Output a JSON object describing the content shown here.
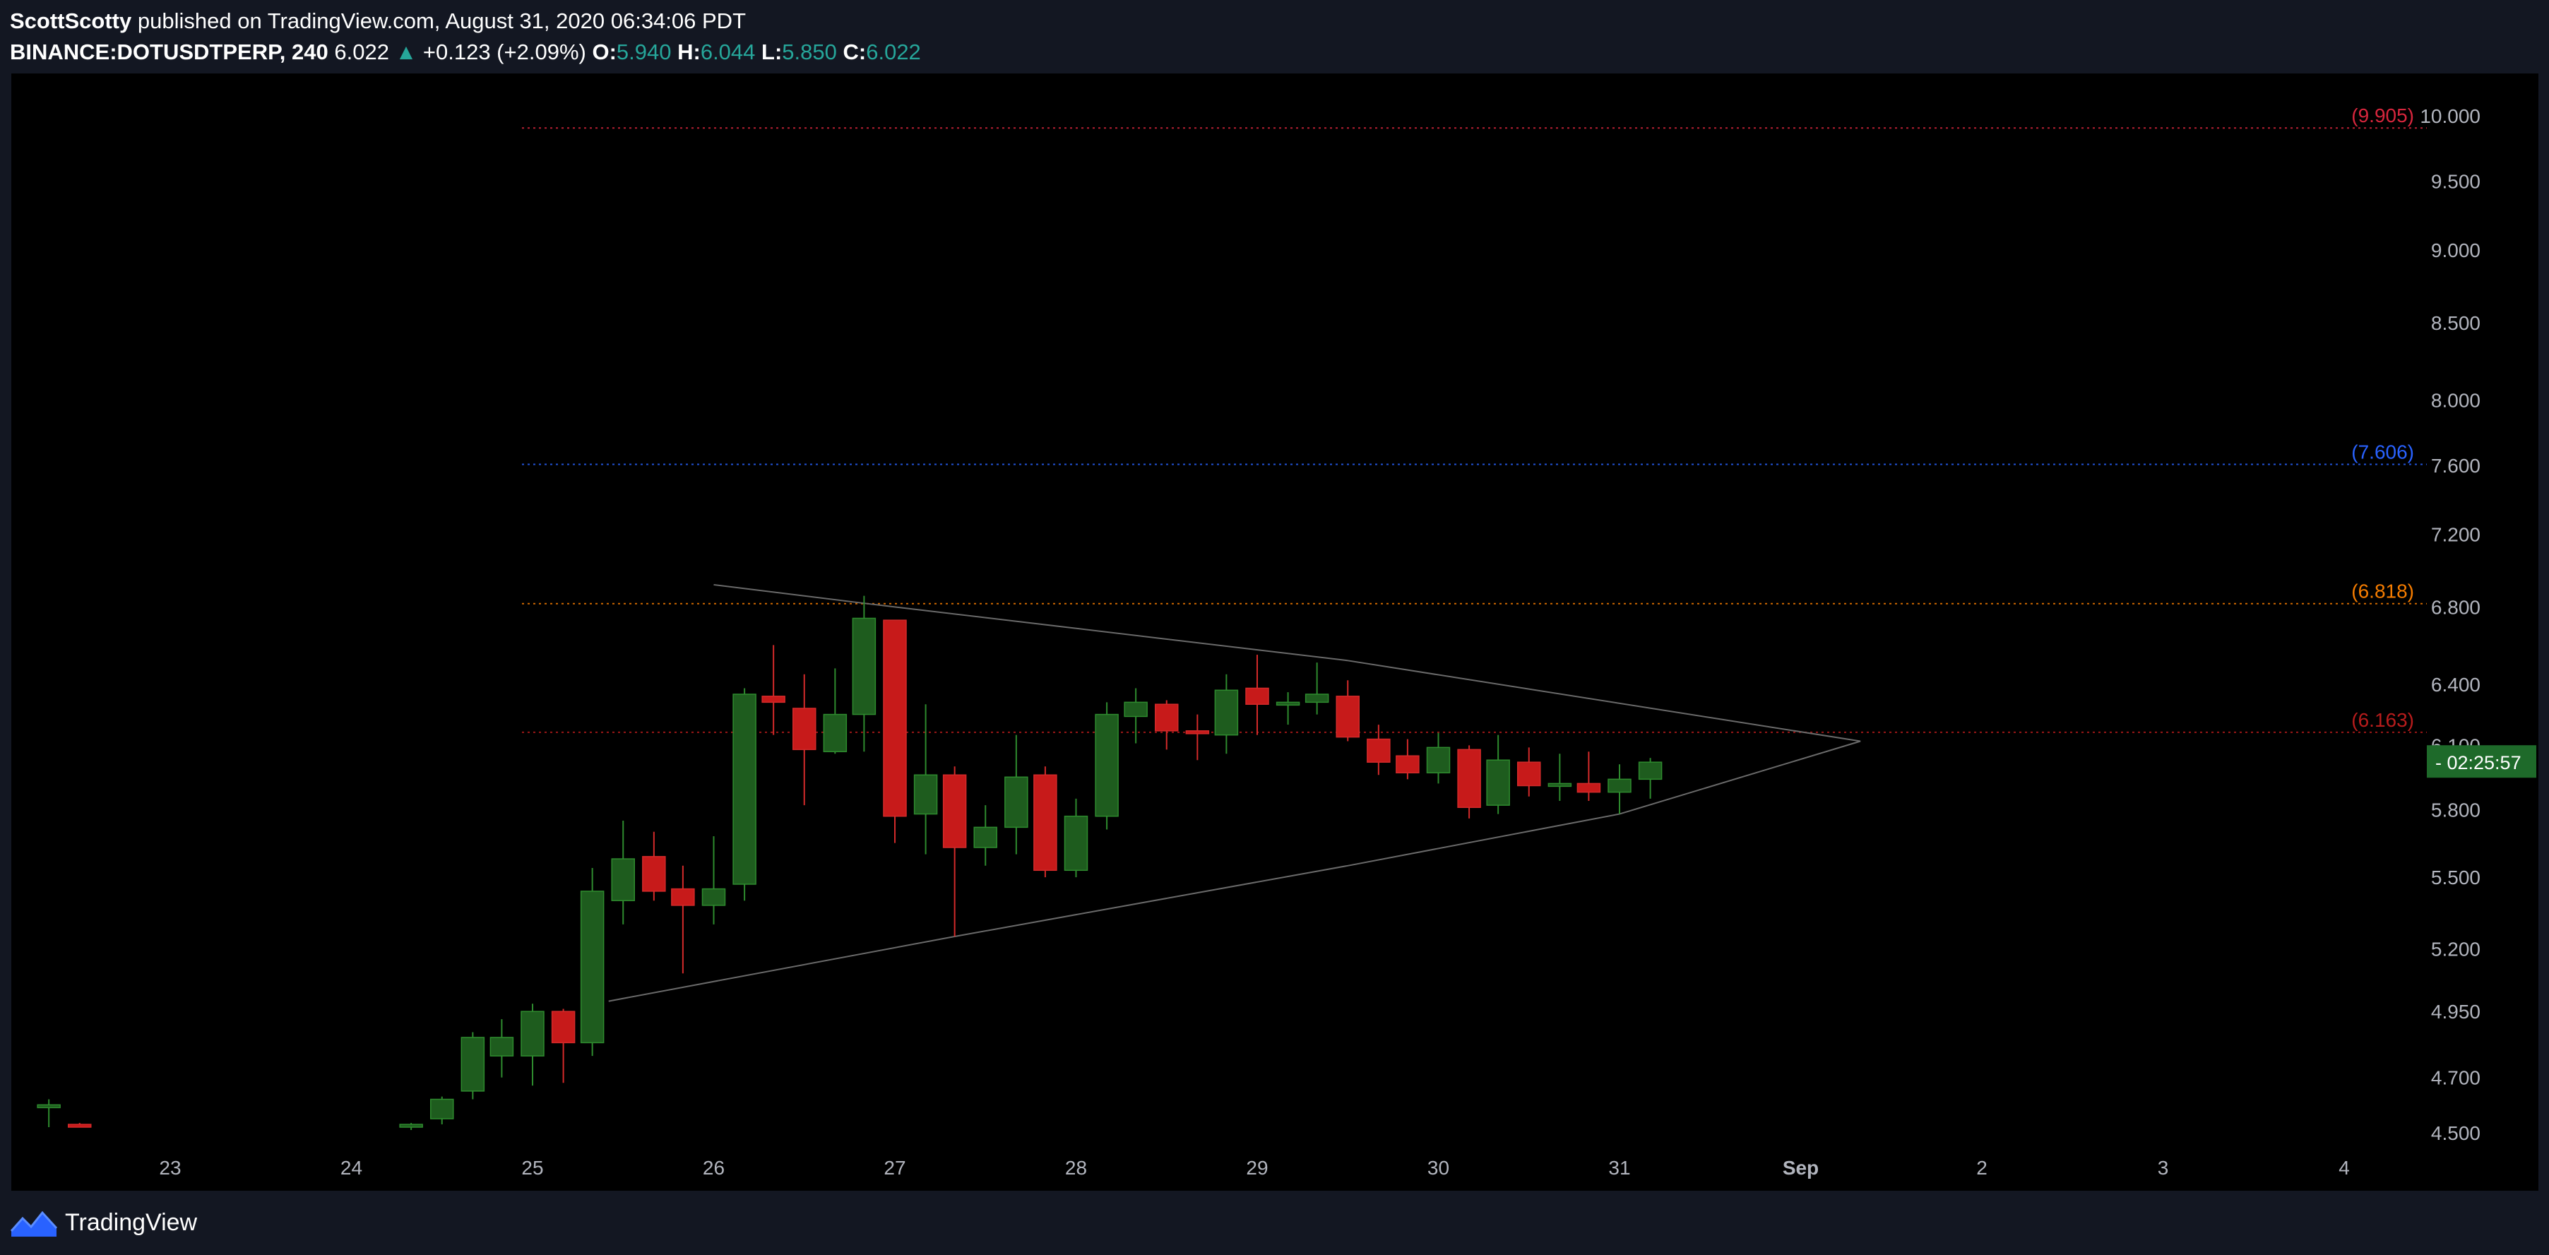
{
  "header": {
    "author": "ScottScotty",
    "published": "published on TradingView.com, August 31, 2020 06:34:06 PDT",
    "symbol": "BINANCE:DOTUSDTPERP, 240",
    "last_price": "6.022",
    "change_arrow": "▲",
    "change": "+0.123 (+2.09%)",
    "o_label": "O:",
    "o_value": "5.940",
    "h_label": "H:",
    "h_value": "6.044",
    "l_label": "L:",
    "l_value": "5.850",
    "c_label": "C:",
    "c_value": "6.022"
  },
  "footer": {
    "brand": "TradingView"
  },
  "colors": {
    "up": "#1e5c1e",
    "up_stroke": "#2e8b2e",
    "down": "#c71a1a",
    "down_stroke": "#d42a2a",
    "axis_text": "#b2b5be",
    "triangle": "#6a6a6a",
    "countdown_bg": "#1e6a2a"
  },
  "chart_data": {
    "type": "candlestick",
    "x_labels": [
      "23",
      "24",
      "25",
      "26",
      "27",
      "28",
      "29",
      "30",
      "31",
      "Sep",
      "2",
      "3",
      "4"
    ],
    "y_ticks": [
      "4.500",
      "4.700",
      "4.950",
      "5.200",
      "5.500",
      "5.800",
      "6.100",
      "6.400",
      "6.800",
      "7.200",
      "7.600",
      "8.000",
      "8.500",
      "9.000",
      "9.500",
      "10.000"
    ],
    "y_scale": "log",
    "ylim": [
      4.5,
      10.0
    ],
    "time_unit": "days (label 23 = 23 Aug 2020 00:00), bar interval 240 minutes",
    "current_price_countdown": "02:25:57",
    "levels": [
      {
        "value": 9.905,
        "label": "(9.905)",
        "color": "#d7263d"
      },
      {
        "value": 7.606,
        "label": "(7.606)",
        "color": "#2962ff"
      },
      {
        "value": 6.818,
        "label": "(6.818)",
        "color": "#f57c00"
      },
      {
        "value": 6.163,
        "label": "(6.163)",
        "color": "#b71c1c"
      }
    ],
    "triangle_lines": [
      {
        "x": [
          26.0,
          26.83,
          29.5,
          32.33
        ],
        "y": [
          6.92,
          6.82,
          6.52,
          6.12
        ]
      },
      {
        "x": [
          25.42,
          27.33,
          29.5,
          31.0,
          32.33
        ],
        "y": [
          4.99,
          5.25,
          5.55,
          5.78,
          6.12
        ]
      }
    ],
    "candles": [
      {
        "t": 22.33,
        "o": 4.6,
        "h": 4.62,
        "l": 4.52,
        "c": 4.6
      },
      {
        "t": 22.5,
        "o": 4.53,
        "h": 4.535,
        "l": 4.52,
        "c": 4.525
      },
      {
        "t": 24.33,
        "o": 4.52,
        "h": 4.535,
        "l": 4.51,
        "c": 4.53
      },
      {
        "t": 24.5,
        "o": 4.55,
        "h": 4.63,
        "l": 4.53,
        "c": 4.62
      },
      {
        "t": 24.67,
        "o": 4.65,
        "h": 4.87,
        "l": 4.62,
        "c": 4.85
      },
      {
        "t": 24.83,
        "o": 4.78,
        "h": 4.92,
        "l": 4.7,
        "c": 4.85
      },
      {
        "t": 25.0,
        "o": 4.78,
        "h": 4.98,
        "l": 4.67,
        "c": 4.95
      },
      {
        "t": 25.17,
        "o": 4.95,
        "h": 4.96,
        "l": 4.68,
        "c": 4.83
      },
      {
        "t": 25.33,
        "o": 4.83,
        "h": 5.54,
        "l": 4.78,
        "c": 5.44
      },
      {
        "t": 25.5,
        "o": 5.4,
        "h": 5.75,
        "l": 5.3,
        "c": 5.58
      },
      {
        "t": 25.67,
        "o": 5.59,
        "h": 5.7,
        "l": 5.4,
        "c": 5.44
      },
      {
        "t": 25.83,
        "o": 5.45,
        "h": 5.55,
        "l": 5.1,
        "c": 5.38
      },
      {
        "t": 26.0,
        "o": 5.38,
        "h": 5.68,
        "l": 5.3,
        "c": 5.45
      },
      {
        "t": 26.17,
        "o": 5.47,
        "h": 6.38,
        "l": 5.4,
        "c": 6.35
      },
      {
        "t": 26.33,
        "o": 6.34,
        "h": 6.6,
        "l": 6.15,
        "c": 6.31
      },
      {
        "t": 26.5,
        "o": 6.28,
        "h": 6.45,
        "l": 5.82,
        "c": 6.08
      },
      {
        "t": 26.67,
        "o": 6.07,
        "h": 6.48,
        "l": 6.06,
        "c": 6.25
      },
      {
        "t": 26.83,
        "o": 6.25,
        "h": 6.86,
        "l": 6.07,
        "c": 6.74
      },
      {
        "t": 27.0,
        "o": 6.73,
        "h": 6.73,
        "l": 5.65,
        "c": 5.77
      },
      {
        "t": 27.17,
        "o": 5.78,
        "h": 6.3,
        "l": 5.6,
        "c": 5.96
      },
      {
        "t": 27.33,
        "o": 5.96,
        "h": 6.0,
        "l": 5.25,
        "c": 5.63
      },
      {
        "t": 27.5,
        "o": 5.63,
        "h": 5.82,
        "l": 5.55,
        "c": 5.72
      },
      {
        "t": 27.67,
        "o": 5.72,
        "h": 6.15,
        "l": 5.6,
        "c": 5.95
      },
      {
        "t": 27.83,
        "o": 5.96,
        "h": 6.0,
        "l": 5.5,
        "c": 5.53
      },
      {
        "t": 28.0,
        "o": 5.53,
        "h": 5.85,
        "l": 5.5,
        "c": 5.77
      },
      {
        "t": 28.17,
        "o": 5.77,
        "h": 6.31,
        "l": 5.71,
        "c": 6.25
      },
      {
        "t": 28.33,
        "o": 6.24,
        "h": 6.38,
        "l": 6.11,
        "c": 6.31
      },
      {
        "t": 28.5,
        "o": 6.3,
        "h": 6.32,
        "l": 6.08,
        "c": 6.17
      },
      {
        "t": 28.67,
        "o": 6.17,
        "h": 6.25,
        "l": 6.03,
        "c": 6.16
      },
      {
        "t": 28.83,
        "o": 6.15,
        "h": 6.45,
        "l": 6.06,
        "c": 6.37
      },
      {
        "t": 29.0,
        "o": 6.38,
        "h": 6.55,
        "l": 6.15,
        "c": 6.3
      },
      {
        "t": 29.17,
        "o": 6.3,
        "h": 6.36,
        "l": 6.2,
        "c": 6.31
      },
      {
        "t": 29.33,
        "o": 6.31,
        "h": 6.51,
        "l": 6.25,
        "c": 6.35
      },
      {
        "t": 29.5,
        "o": 6.34,
        "h": 6.42,
        "l": 6.12,
        "c": 6.14
      },
      {
        "t": 29.67,
        "o": 6.13,
        "h": 6.2,
        "l": 5.96,
        "c": 6.02
      },
      {
        "t": 29.83,
        "o": 6.05,
        "h": 6.13,
        "l": 5.94,
        "c": 5.97
      },
      {
        "t": 30.0,
        "o": 5.97,
        "h": 6.16,
        "l": 5.92,
        "c": 6.09
      },
      {
        "t": 30.17,
        "o": 6.08,
        "h": 6.1,
        "l": 5.76,
        "c": 5.81
      },
      {
        "t": 30.33,
        "o": 5.82,
        "h": 6.15,
        "l": 5.78,
        "c": 6.03
      },
      {
        "t": 30.5,
        "o": 6.02,
        "h": 6.09,
        "l": 5.86,
        "c": 5.91
      },
      {
        "t": 30.67,
        "o": 5.91,
        "h": 6.06,
        "l": 5.84,
        "c": 5.92
      },
      {
        "t": 30.83,
        "o": 5.92,
        "h": 6.07,
        "l": 5.84,
        "c": 5.88
      },
      {
        "t": 31.0,
        "o": 5.88,
        "h": 6.01,
        "l": 5.78,
        "c": 5.94
      },
      {
        "t": 31.17,
        "o": 5.94,
        "h": 6.04,
        "l": 5.85,
        "c": 6.02
      }
    ]
  }
}
